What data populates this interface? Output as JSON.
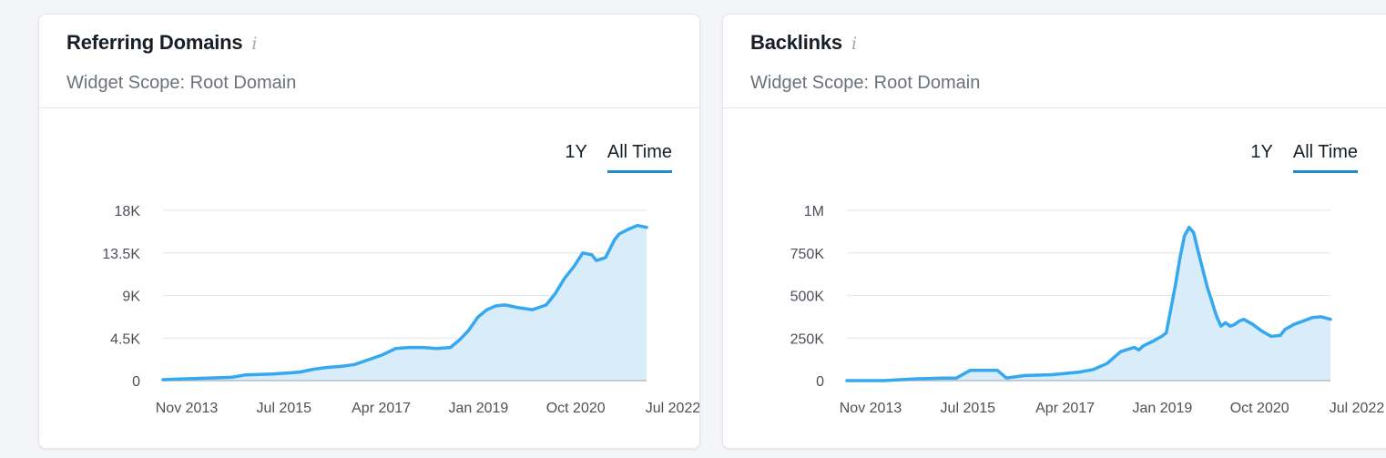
{
  "colors": {
    "line": "#35a8f0",
    "area": "#d8ecfa",
    "grid": "#e4e6ea",
    "baseline": "#b7bcc4",
    "tick": "#4b5058",
    "accent": "#1b8cd6"
  },
  "widgets": [
    {
      "title": "Referring Domains",
      "info_icon": "info-icon",
      "subtitle": "Widget Scope: Root Domain",
      "tabs": [
        "1Y",
        "All Time"
      ],
      "active_tab": "All Time"
    },
    {
      "title": "Backlinks",
      "info_icon": "info-icon",
      "subtitle": "Widget Scope: Root Domain",
      "tabs": [
        "1Y",
        "All Time"
      ],
      "active_tab": "All Time"
    }
  ],
  "chart_data": [
    {
      "type": "area",
      "title": "Referring Domains",
      "xlabel": "",
      "ylabel": "",
      "x_tick_labels": [
        "Nov 2013",
        "Jul 2015",
        "Apr 2017",
        "Jan 2019",
        "Oct 2020",
        "Jul 2022"
      ],
      "y_tick_labels": [
        "0",
        "4.5K",
        "9K",
        "13.5K",
        "18K"
      ],
      "ylim": [
        0,
        18000
      ],
      "xlim": [
        "2013-10",
        "2022-08"
      ],
      "grid": true,
      "x": [
        "2013-10",
        "2014-01",
        "2014-04",
        "2014-07",
        "2014-10",
        "2015-01",
        "2015-04",
        "2015-07",
        "2015-10",
        "2016-01",
        "2016-04",
        "2016-07",
        "2016-10",
        "2017-01",
        "2017-04",
        "2017-07",
        "2017-10",
        "2018-01",
        "2018-04",
        "2018-07",
        "2018-10",
        "2019-01",
        "2019-03",
        "2019-05",
        "2019-07",
        "2019-09",
        "2019-11",
        "2020-01",
        "2020-04",
        "2020-07",
        "2020-10",
        "2020-12",
        "2021-02",
        "2021-04",
        "2021-06",
        "2021-08",
        "2021-09",
        "2021-11",
        "2022-01",
        "2022-02",
        "2022-04",
        "2022-06",
        "2022-07",
        "2022-08"
      ],
      "values": [
        100,
        150,
        200,
        250,
        300,
        350,
        600,
        650,
        700,
        800,
        900,
        1200,
        1400,
        1500,
        1700,
        2200,
        2700,
        3400,
        3500,
        3500,
        3400,
        3500,
        4300,
        5300,
        6700,
        7500,
        7900,
        8000,
        7700,
        7500,
        8000,
        9200,
        10800,
        12000,
        13500,
        13300,
        12700,
        13000,
        14900,
        15500,
        16000,
        16400,
        16300,
        16200
      ]
    },
    {
      "type": "area",
      "title": "Backlinks",
      "xlabel": "",
      "ylabel": "",
      "x_tick_labels": [
        "Nov 2013",
        "Jul 2015",
        "Apr 2017",
        "Jan 2019",
        "Oct 2020",
        "Jul 2022"
      ],
      "y_tick_labels": [
        "0",
        "250K",
        "500K",
        "750K",
        "1M"
      ],
      "ylim": [
        0,
        1000000
      ],
      "xlim": [
        "2013-10",
        "2022-08"
      ],
      "grid": true,
      "x": [
        "2013-10",
        "2014-06",
        "2015-01",
        "2015-07",
        "2015-10",
        "2016-01",
        "2016-07",
        "2016-09",
        "2017-01",
        "2017-07",
        "2018-01",
        "2018-04",
        "2018-07",
        "2018-10",
        "2019-01",
        "2019-02",
        "2019-03",
        "2019-05",
        "2019-07",
        "2019-08",
        "2019-09",
        "2019-10",
        "2019-11",
        "2019-12",
        "2020-01",
        "2020-02",
        "2020-03",
        "2020-05",
        "2020-07",
        "2020-08",
        "2020-09",
        "2020-10",
        "2020-11",
        "2020-12",
        "2021-01",
        "2021-03",
        "2021-05",
        "2021-07",
        "2021-09",
        "2021-10",
        "2021-12",
        "2022-02",
        "2022-04",
        "2022-06",
        "2022-08"
      ],
      "values": [
        0,
        0,
        10000,
        15000,
        15000,
        60000,
        60000,
        15000,
        30000,
        35000,
        50000,
        65000,
        100000,
        170000,
        195000,
        180000,
        205000,
        230000,
        260000,
        280000,
        420000,
        560000,
        720000,
        850000,
        900000,
        870000,
        760000,
        550000,
        380000,
        320000,
        340000,
        320000,
        330000,
        350000,
        360000,
        330000,
        290000,
        260000,
        265000,
        300000,
        330000,
        350000,
        370000,
        375000,
        360000
      ]
    }
  ]
}
